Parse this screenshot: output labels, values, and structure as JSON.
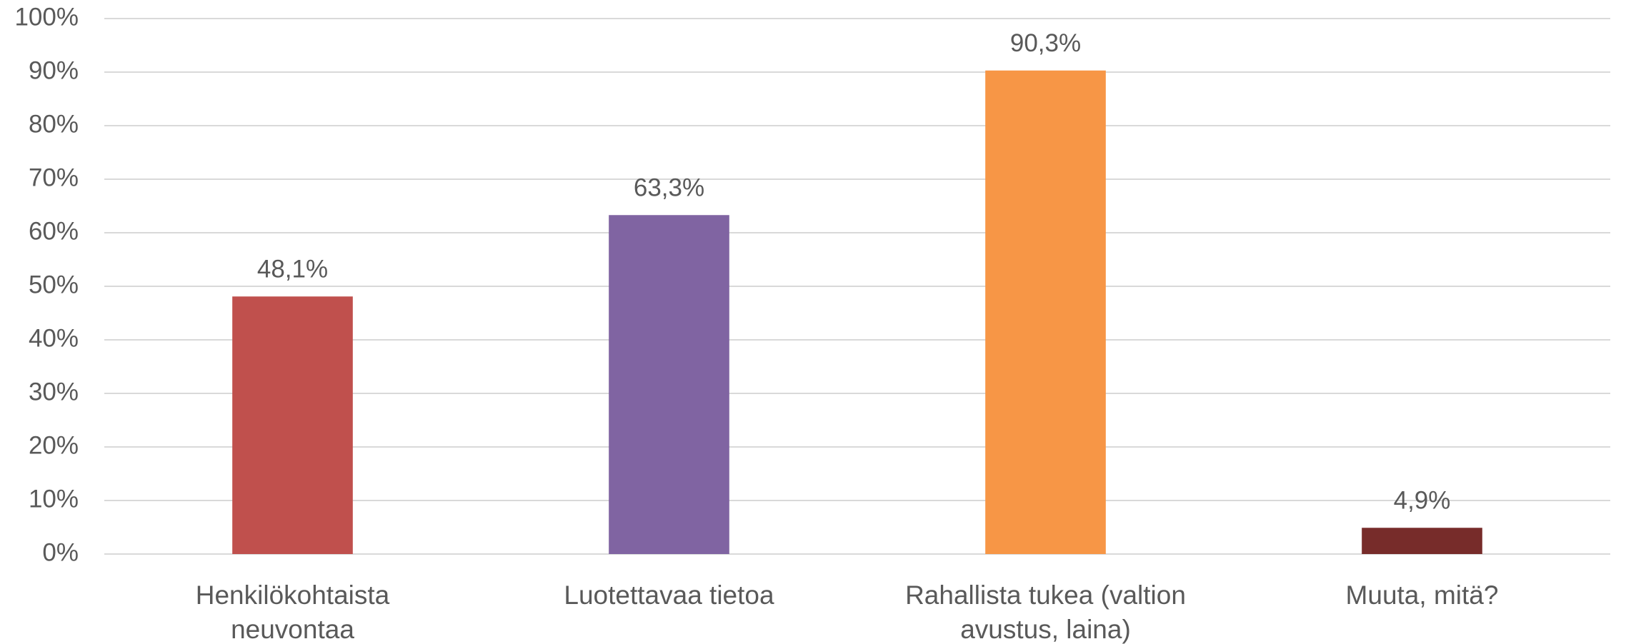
{
  "chart_data": {
    "type": "bar",
    "categories": [
      "Henkilökohtaista neuvontaa",
      "Luotettavaa tietoa",
      "Rahallista tukea (valtion avustus, laina)",
      "Muuta, mitä?"
    ],
    "values": [
      48.1,
      63.3,
      90.3,
      4.9
    ],
    "value_labels": [
      "48,1%",
      "63,3%",
      "90,3%",
      "4,9%"
    ],
    "colors": [
      "#c0504d",
      "#8064a2",
      "#f79646",
      "#772c2a"
    ],
    "ylim": [
      0,
      100
    ],
    "yticks": [
      {
        "value": 0,
        "label": "0%"
      },
      {
        "value": 10,
        "label": "10%"
      },
      {
        "value": 20,
        "label": "20%"
      },
      {
        "value": 30,
        "label": "30%"
      },
      {
        "value": 40,
        "label": "40%"
      },
      {
        "value": 50,
        "label": "50%"
      },
      {
        "value": 60,
        "label": "60%"
      },
      {
        "value": 70,
        "label": "70%"
      },
      {
        "value": 80,
        "label": "80%"
      },
      {
        "value": 90,
        "label": "90%"
      },
      {
        "value": 100,
        "label": "100%"
      }
    ],
    "grid": true
  }
}
